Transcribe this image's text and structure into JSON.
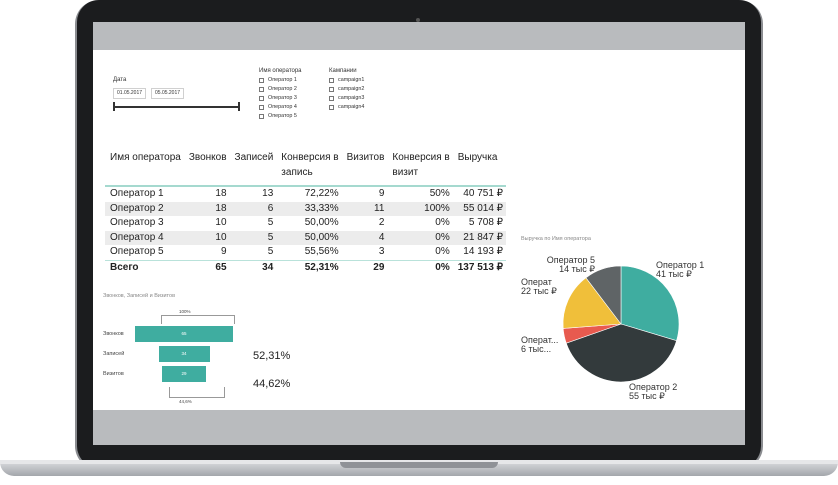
{
  "filters": {
    "date_label": "Дата",
    "date_from": "01.05.2017",
    "date_to": "05.05.2017",
    "operator_label": "Имя оператора",
    "operators": [
      "Оператор 1",
      "Оператор 2",
      "Оператор 3",
      "Оператор 4",
      "Оператор 5"
    ],
    "campaign_label": "Кампании",
    "campaigns": [
      "campaign1",
      "campaign2",
      "campaign3",
      "campaign4"
    ]
  },
  "table": {
    "headers": [
      "Имя оператора",
      "Звонков",
      "Записей",
      "Конверсия в запись",
      "Визитов",
      "Конверсия в визит",
      "Выручка"
    ],
    "header_lines": [
      [
        "Имя оператора"
      ],
      [
        "Звонков"
      ],
      [
        "Записей"
      ],
      [
        "Конверсия в",
        "запись"
      ],
      [
        "Визитов"
      ],
      [
        "Конверсия в",
        "визит"
      ],
      [
        "Выручка"
      ]
    ],
    "rows": [
      [
        "Оператор 1",
        "18",
        "13",
        "72,22%",
        "9",
        "50%",
        "40 751 ₽"
      ],
      [
        "Оператор 2",
        "18",
        "6",
        "33,33%",
        "11",
        "100%",
        "55 014 ₽"
      ],
      [
        "Оператор 3",
        "10",
        "5",
        "50,00%",
        "2",
        "0%",
        "5 708 ₽"
      ],
      [
        "Оператор 4",
        "10",
        "5",
        "50,00%",
        "4",
        "0%",
        "21 847 ₽"
      ],
      [
        "Оператор 5",
        "9",
        "5",
        "55,56%",
        "3",
        "0%",
        "14 193 ₽"
      ]
    ],
    "total": [
      "Всего",
      "65",
      "34",
      "52,31%",
      "29",
      "0%",
      "137 513 ₽"
    ]
  },
  "funnel": {
    "title": "Звонков, Записей и Визитов",
    "top_tick": "100%",
    "bottom_tick": "44,6%",
    "stages": [
      {
        "label": "Звонков",
        "value": "65",
        "ratio": 1.0
      },
      {
        "label": "Записей",
        "value": "34",
        "ratio": 0.523
      },
      {
        "label": "Визитов",
        "value": "29",
        "ratio": 0.446
      }
    ],
    "conv1": "52,31%",
    "conv2": "44,62%"
  },
  "pie": {
    "title": "Выручка по Имя оператора",
    "colors": {
      "op1": "#3fada0",
      "op2": "#333a3c",
      "op3": "#e85a4f",
      "op4": "#f0bf3a",
      "op5": "#5f6466"
    },
    "labels": {
      "op1": [
        "Оператор 1",
        "41 тыс ₽"
      ],
      "op2": [
        "Оператор 2",
        "55 тыс ₽"
      ],
      "op3": [
        "Операт...",
        "6 тыс..."
      ],
      "op4": [
        "Операт",
        "22 тыс ₽"
      ],
      "op5": [
        "Оператор 5",
        "14 тыс ₽"
      ]
    }
  },
  "chart_data": {
    "type": "pie",
    "title": "Выручка по Имя оператора",
    "categories": [
      "Оператор 1",
      "Оператор 2",
      "Оператор 3",
      "Оператор 4",
      "Оператор 5"
    ],
    "values": [
      40751,
      55014,
      5708,
      21847,
      14193
    ]
  }
}
